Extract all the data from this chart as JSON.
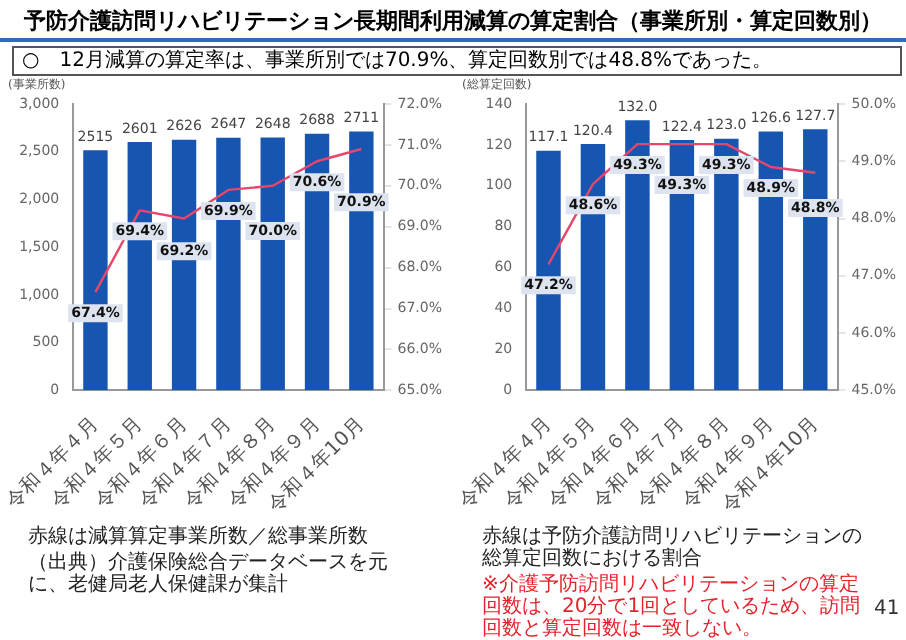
{
  "chart_data": [
    {
      "type": "bar",
      "title": "予防介護訪問リハビリテーション長期間利用減算の算定割合（事業所別・算定回数別）",
      "subtitle": "○　12月減算の算定率は、事業所別では70.9%、算定回数別では48.8%であった。",
      "ylabel": "(事業所数)",
      "categories": [
        "令和４年４月",
        "令和４年５月",
        "令和４年６月",
        "令和４年７月",
        "令和４年８月",
        "令和４年９月",
        "令和４年10月"
      ],
      "series": [
        {
          "color": "#1656b0",
          "values": [
            2515,
            2601,
            2626,
            2647,
            2648,
            2688,
            2711
          ],
          "value_labels": [
            "2515",
            "2601",
            "2626",
            "2647",
            "2648",
            "2688",
            "2711"
          ]
        },
        {
          "type": "line",
          "axis": "y2",
          "color": "#e8456b",
          "values": [
            67.4,
            69.4,
            69.2,
            69.9,
            70.0,
            70.6,
            70.9
          ],
          "value_labels": [
            "67.4%",
            "69.4%",
            "69.2%",
            "69.9%",
            "70.0%",
            "70.6%",
            "70.9%"
          ]
        }
      ],
      "ylim": [
        0,
        3000
      ],
      "yticks": [
        0,
        500,
        {
          "value": 1000,
          "label": "1,000"
        },
        {
          "value": 1500,
          "label": "1,500"
        },
        {
          "value": 2000,
          "label": "2,000"
        },
        {
          "value": 2500,
          "label": "2,500"
        },
        {
          "value": 3000,
          "label": "3,000"
        }
      ],
      "y2lim": [
        65,
        72
      ],
      "y2ticks": [
        {
          "value": 65,
          "label": "65.0%"
        },
        {
          "value": 66,
          "label": "66.0%"
        },
        {
          "value": 67,
          "label": "67.0%"
        },
        {
          "value": 68,
          "label": "68.0%"
        },
        {
          "value": 69,
          "label": "69.0%"
        },
        {
          "value": 70,
          "label": "70.0%"
        },
        {
          "value": 71,
          "label": "71.0%"
        },
        {
          "value": 72,
          "label": "72.0%"
        }
      ],
      "grid": false,
      "legend": false,
      "annotations": [
        "赤線は減算算定事業所数／総事業所数",
        "（出典）介護保険総合データベースを元に、老健局老人保健課が集計"
      ]
    },
    {
      "type": "bar",
      "ylabel": "(総算定回数)",
      "categories": [
        "令和４年４月",
        "令和４年５月",
        "令和４年６月",
        "令和４年７月",
        "令和４年８月",
        "令和４年９月",
        "令和４年10月"
      ],
      "series": [
        {
          "color": "#1656b0",
          "values": [
            117.1,
            120.4,
            132.0,
            122.4,
            123.0,
            126.6,
            127.7
          ],
          "value_labels": [
            "117.1",
            "120.4",
            "132.0",
            "122.4",
            "123.0",
            "126.6",
            "127.7"
          ]
        },
        {
          "type": "line",
          "axis": "y2",
          "color": "#e8456b",
          "values": [
            47.2,
            48.6,
            49.3,
            49.3,
            49.3,
            48.9,
            48.8
          ],
          "value_labels": [
            "47.2%",
            "48.6%",
            "49.3%",
            "49.3%",
            "49.3%",
            "48.9%",
            "48.8%"
          ]
        }
      ],
      "ylim": [
        0,
        140
      ],
      "yticks": [
        0,
        20,
        40,
        60,
        80,
        100,
        120,
        140
      ],
      "y2lim": [
        45,
        50
      ],
      "y2ticks": [
        {
          "value": 45,
          "label": "45.0%"
        },
        {
          "value": 46,
          "label": "46.0%"
        },
        {
          "value": 47,
          "label": "47.0%"
        },
        {
          "value": 48,
          "label": "48.0%"
        },
        {
          "value": 49,
          "label": "49.0%"
        },
        {
          "value": 50,
          "label": "50.0%"
        }
      ],
      "grid": false,
      "legend": false,
      "annotations": [
        "赤線は予防介護訪問リハビリテーションの総算定回数における割合",
        "※介護予防訪問リハビリテーションの算定回数は、20分で1回としているため、訪問回数と算定回数は一致しない。",
        "41"
      ]
    }
  ]
}
